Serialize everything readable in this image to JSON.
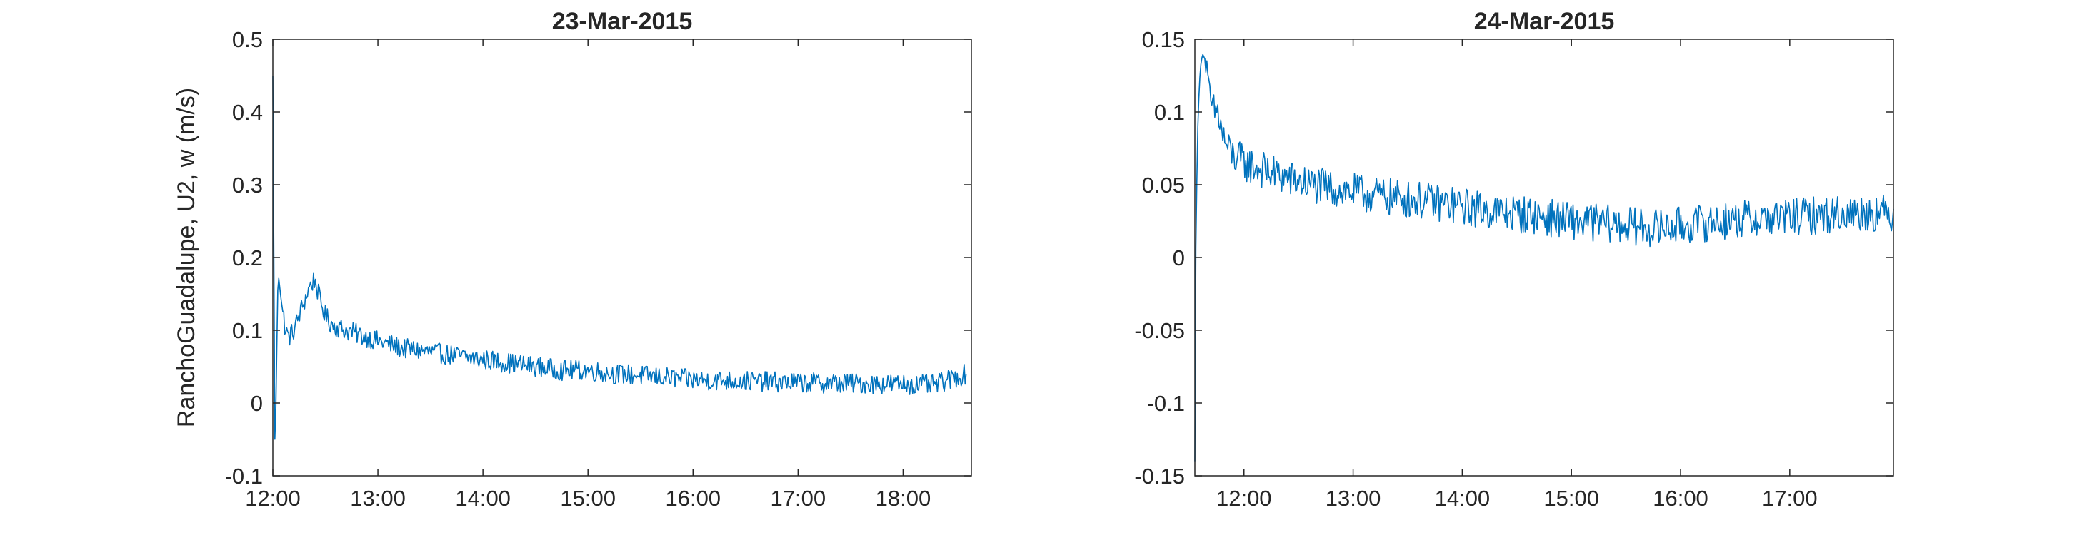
{
  "chart_data": [
    {
      "type": "line",
      "title": "23-Mar-2015",
      "xlabel": "",
      "ylabel": "RanchoGuadalupe, U2, w (m/s)",
      "x_unit": "time of day (hours)",
      "xlim": [
        12.0,
        18.65
      ],
      "ylim": [
        -0.1,
        0.5
      ],
      "xticks": [
        12,
        13,
        14,
        15,
        16,
        17,
        18
      ],
      "xtick_labels": [
        "12:00",
        "13:00",
        "14:00",
        "15:00",
        "16:00",
        "17:00",
        "18:00"
      ],
      "yticks": [
        -0.1,
        0,
        0.1,
        0.2,
        0.3,
        0.4,
        0.5
      ],
      "ytick_labels": [
        "-0.1",
        "0",
        "0.1",
        "0.2",
        "0.3",
        "0.4",
        "0.5"
      ],
      "color": "#0072BD",
      "grid": false,
      "series": [
        {
          "x": [
            12.0,
            12.02,
            12.05,
            12.08,
            12.12,
            12.15,
            12.2,
            12.25,
            12.3,
            12.35,
            12.4,
            12.45,
            12.5,
            12.55,
            12.6,
            12.7,
            12.8,
            12.9,
            13.0,
            13.25,
            13.5,
            13.75,
            14.0,
            14.25,
            14.5,
            14.75,
            15.0,
            15.25,
            15.5,
            15.75,
            16.0,
            16.5,
            17.0,
            17.5,
            18.0,
            18.3,
            18.6
          ],
          "y": [
            0.45,
            -0.08,
            0.18,
            0.14,
            0.1,
            0.09,
            0.1,
            0.12,
            0.14,
            0.16,
            0.17,
            0.14,
            0.12,
            0.11,
            0.105,
            0.1,
            0.095,
            0.09,
            0.085,
            0.075,
            0.07,
            0.065,
            0.06,
            0.055,
            0.05,
            0.045,
            0.045,
            0.04,
            0.038,
            0.035,
            0.032,
            0.03,
            0.028,
            0.027,
            0.026,
            0.025,
            0.04
          ]
        }
      ]
    },
    {
      "type": "line",
      "title": "24-Mar-2015",
      "xlabel": "",
      "ylabel": "",
      "x_unit": "time of day (hours)",
      "xlim": [
        11.55,
        17.95
      ],
      "ylim": [
        -0.15,
        0.15
      ],
      "xticks": [
        12,
        13,
        14,
        15,
        16,
        17
      ],
      "xtick_labels": [
        "12:00",
        "13:00",
        "14:00",
        "15:00",
        "16:00",
        "17:00"
      ],
      "yticks": [
        -0.15,
        -0.1,
        -0.05,
        0,
        0.05,
        0.1,
        0.15
      ],
      "ytick_labels": [
        "-0.15",
        "-0.1",
        "-0.05",
        "0",
        "0.05",
        "0.1",
        "0.15"
      ],
      "color": "#0072BD",
      "grid": false,
      "series": [
        {
          "x": [
            11.55,
            11.56,
            11.58,
            11.6,
            11.62,
            11.65,
            11.68,
            11.72,
            11.76,
            11.8,
            11.85,
            11.9,
            12.0,
            12.25,
            12.5,
            12.75,
            13.0,
            13.25,
            13.5,
            13.75,
            14.0,
            14.25,
            14.5,
            14.75,
            15.0,
            15.25,
            15.5,
            15.75,
            16.0,
            16.25,
            16.5,
            16.75,
            17.0,
            17.25,
            17.5,
            17.75,
            17.95
          ],
          "y": [
            -0.14,
            0.02,
            0.1,
            0.13,
            0.14,
            0.135,
            0.11,
            0.1,
            0.1,
            0.085,
            0.075,
            0.07,
            0.065,
            0.058,
            0.052,
            0.048,
            0.045,
            0.042,
            0.04,
            0.038,
            0.035,
            0.032,
            0.03,
            0.028,
            0.025,
            0.024,
            0.022,
            0.02,
            0.022,
            0.024,
            0.026,
            0.027,
            0.028,
            0.029,
            0.03,
            0.031,
            0.03
          ]
        }
      ]
    }
  ]
}
